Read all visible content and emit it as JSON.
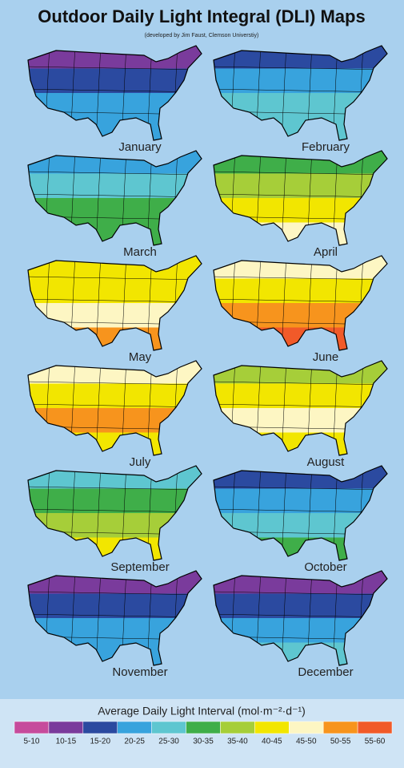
{
  "header": {
    "title": "Outdoor Daily Light Integral (DLI) Maps",
    "subtitle": "(developed by Jim Faust, Clemson Universtiy)"
  },
  "maps": [
    {
      "label": "January",
      "bands": [
        "#7a3b9c",
        "#2b4aa0",
        "#38a3dd",
        "#38a3dd"
      ]
    },
    {
      "label": "February",
      "bands": [
        "#2b4aa0",
        "#38a3dd",
        "#5ec6d0",
        "#5ec6d0"
      ]
    },
    {
      "label": "March",
      "bands": [
        "#38a3dd",
        "#5ec6d0",
        "#3fae49",
        "#3fae49"
      ]
    },
    {
      "label": "April",
      "bands": [
        "#3fae49",
        "#a6ce39",
        "#f2e600",
        "#fdf6c3"
      ]
    },
    {
      "label": "May",
      "bands": [
        "#f2e600",
        "#f2e600",
        "#fdf6c3",
        "#f7941d"
      ]
    },
    {
      "label": "June",
      "bands": [
        "#fdf6c3",
        "#f2e600",
        "#f7941d",
        "#f15a29"
      ]
    },
    {
      "label": "July",
      "bands": [
        "#fdf6c3",
        "#f2e600",
        "#f7941d",
        "#f2e600"
      ]
    },
    {
      "label": "August",
      "bands": [
        "#a6ce39",
        "#f2e600",
        "#fdf6c3",
        "#f2e600"
      ]
    },
    {
      "label": "September",
      "bands": [
        "#5ec6d0",
        "#3fae49",
        "#a6ce39",
        "#f2e600"
      ]
    },
    {
      "label": "October",
      "bands": [
        "#2b4aa0",
        "#38a3dd",
        "#5ec6d0",
        "#3fae49"
      ]
    },
    {
      "label": "November",
      "bands": [
        "#7a3b9c",
        "#2b4aa0",
        "#38a3dd",
        "#38a3dd"
      ]
    },
    {
      "label": "December",
      "bands": [
        "#7a3b9c",
        "#2b4aa0",
        "#38a3dd",
        "#5ec6d0"
      ]
    }
  ],
  "legend": {
    "title": "Average Daily Light Interval (mol·m⁻²·d⁻¹)",
    "items": [
      {
        "label": "5-10",
        "color": "#c64b9c"
      },
      {
        "label": "10-15",
        "color": "#7a3b9c"
      },
      {
        "label": "15-20",
        "color": "#2b4aa0"
      },
      {
        "label": "20-25",
        "color": "#38a3dd"
      },
      {
        "label": "25-30",
        "color": "#5ec6d0"
      },
      {
        "label": "30-35",
        "color": "#3fae49"
      },
      {
        "label": "35-40",
        "color": "#a6ce39"
      },
      {
        "label": "40-45",
        "color": "#f2e600"
      },
      {
        "label": "45-50",
        "color": "#fdf6c3"
      },
      {
        "label": "50-55",
        "color": "#f7941d"
      },
      {
        "label": "55-60",
        "color": "#f15a29"
      }
    ]
  }
}
